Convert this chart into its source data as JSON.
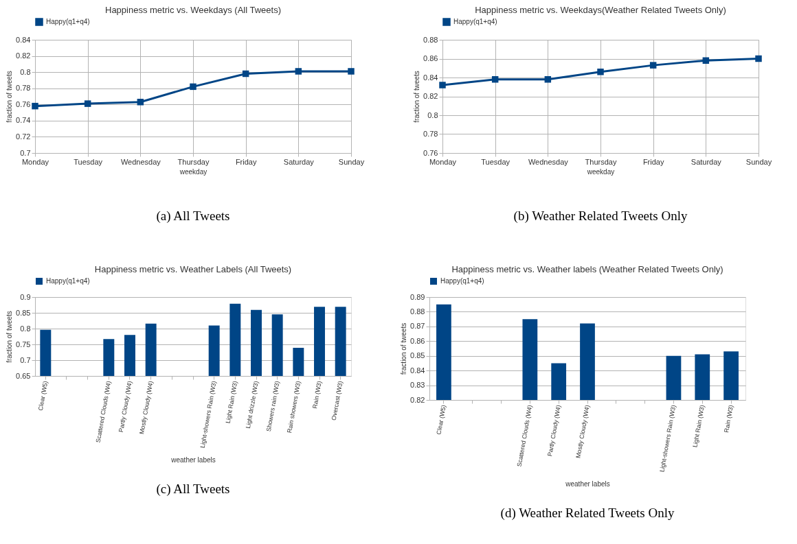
{
  "chart_data": [
    {
      "type": "line",
      "title": "Happiness metric vs. Weekdays (All Tweets)",
      "xlabel": "weekday",
      "ylabel": "fraction of tweets",
      "annotations": [
        "(a)  All Tweets"
      ],
      "categories": [
        "Monday",
        "Tuesday",
        "Wednesday",
        "Thursday",
        "Friday",
        "Saturday",
        "Sunday"
      ],
      "series": [
        {
          "name": "Happy(q1+q4)",
          "color": "#004586",
          "values": [
            0.758,
            0.761,
            0.763,
            0.782,
            0.798,
            0.801,
            0.801
          ]
        }
      ],
      "ylim": [
        0.7,
        0.84
      ],
      "yticks": [
        0.7,
        0.72,
        0.74,
        0.76,
        0.78,
        0.8,
        0.82,
        0.84
      ],
      "grid": true,
      "legend": "top",
      "marker": "square"
    },
    {
      "type": "line",
      "title": "Happiness metric vs. Weekdays(Weather Related Tweets Only)",
      "xlabel": "weekday",
      "ylabel": "fraction of tweets",
      "annotations": [
        "(b)  Weather Related Tweets Only"
      ],
      "categories": [
        "Monday",
        "Tuesday",
        "Wednesday",
        "Thursday",
        "Friday",
        "Saturday",
        "Sunday"
      ],
      "series": [
        {
          "name": "Happy(q1+q4)",
          "color": "#004586",
          "values": [
            0.832,
            0.838,
            0.838,
            0.846,
            0.853,
            0.858,
            0.86
          ]
        }
      ],
      "ylim": [
        0.76,
        0.88
      ],
      "yticks": [
        0.76,
        0.78,
        0.8,
        0.82,
        0.84,
        0.86,
        0.88
      ],
      "grid": true,
      "legend": "top",
      "marker": "square"
    },
    {
      "type": "bar",
      "title": "Happiness metric vs. Weather Labels (All Tweets)",
      "xlabel": "weather labels",
      "ylabel": "fraction of tweets",
      "annotations": [
        "(c)  All Tweets"
      ],
      "categories": [
        "Clear (W5)",
        null,
        null,
        "Scattered Clouds (W4)",
        "Partly Cloudy (W4)",
        "Mostly Cloudy (W4)",
        null,
        null,
        "Light-showers Rain (W3)",
        "Light Rain (W3)",
        "Light drizzle (W3)",
        "Showers rain (W3)",
        "Rain showers (W3)",
        "Rain (W3)",
        "Overcast (W3)"
      ],
      "series": [
        {
          "name": "Happy(q1+q4)",
          "color": "#004586",
          "values": [
            0.796,
            null,
            null,
            0.767,
            0.78,
            0.816,
            null,
            null,
            0.81,
            0.879,
            0.859,
            0.845,
            0.739,
            0.869,
            0.869
          ]
        }
      ],
      "ylim": [
        0.65,
        0.9
      ],
      "yticks": [
        0.65,
        0.7,
        0.75,
        0.8,
        0.85,
        0.9
      ],
      "grid": "y",
      "legend": "top"
    },
    {
      "type": "bar",
      "title": "Happiness metric vs. Weather labels (Weather Related Tweets Only)",
      "xlabel": "weather labels",
      "ylabel": "fraction of tweets",
      "annotations": [
        "(d)  Weather Related Tweets Only"
      ],
      "categories": [
        "Clear (W5)",
        null,
        null,
        "Scattered Clouds (W4)",
        "Partly Cloudy (W4)",
        "Mostly Cloudy (W4)",
        null,
        null,
        "Light-showers Rain (W3)",
        "Light Rain (W3)",
        "Rain (W3)"
      ],
      "series": [
        {
          "name": "Happy(q1+q4)",
          "color": "#004586",
          "values": [
            0.885,
            null,
            null,
            0.875,
            0.845,
            0.872,
            null,
            null,
            0.85,
            0.851,
            0.853
          ]
        }
      ],
      "ylim": [
        0.82,
        0.89
      ],
      "yticks": [
        0.82,
        0.83,
        0.84,
        0.85,
        0.86,
        0.87,
        0.88,
        0.89
      ],
      "grid": "y",
      "legend": "top"
    }
  ]
}
